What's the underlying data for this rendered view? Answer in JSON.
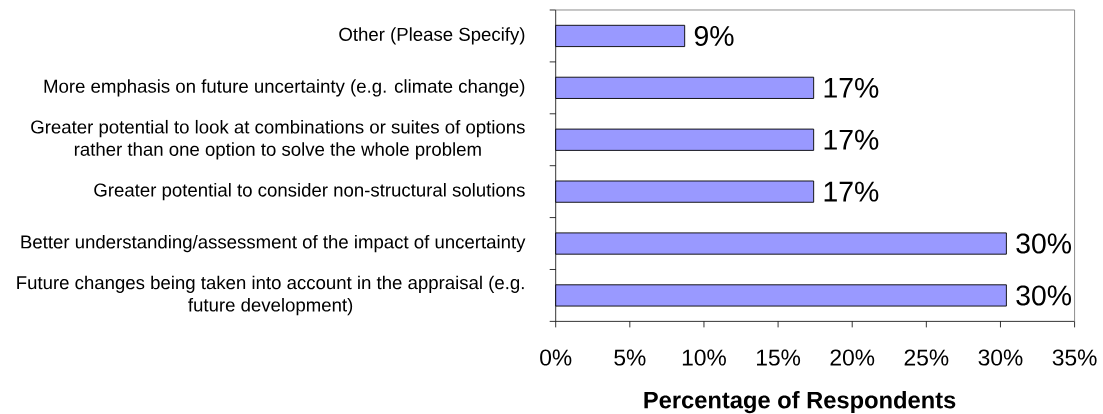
{
  "chart_data": {
    "type": "bar",
    "orientation": "horizontal",
    "xlabel": "Percentage of Respondents",
    "categories": [
      "Other (Please Specify)",
      "More emphasis on future uncertainty (e.g. climate change)",
      "Greater potential to look at combinations or suites of options rather than one option to solve the whole problem",
      "Greater potential to consider non-structural solutions",
      "Better understanding/assessment of the impact of uncertainty",
      "Future changes being taken into account in the appraisal (e.g. future development)"
    ],
    "values": [
      8.7,
      17.4,
      17.4,
      17.4,
      30.4,
      30.4
    ],
    "value_labels": [
      "9%",
      "17%",
      "17%",
      "17%",
      "30%",
      "30%"
    ],
    "color": "#9999ff",
    "xlim": [
      0,
      35
    ],
    "xticks": [
      {
        "value": 0,
        "label": "0%"
      },
      {
        "value": 5,
        "label": "5%"
      },
      {
        "value": 10,
        "label": "10%"
      },
      {
        "value": 15,
        "label": "15%"
      },
      {
        "value": 20,
        "label": "20%"
      },
      {
        "value": 25,
        "label": "25%"
      },
      {
        "value": 30,
        "label": "30%"
      },
      {
        "value": 35,
        "label": "35%"
      }
    ]
  }
}
